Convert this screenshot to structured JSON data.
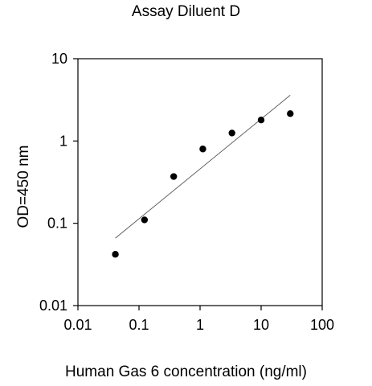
{
  "chart_data": {
    "type": "scatter",
    "title": "Assay Diluent D",
    "xlabel": "Human Gas 6 concentration (ng/ml)",
    "ylabel": "OD=450 nm",
    "xscale": "log",
    "yscale": "log",
    "xlim": [
      0.01,
      100
    ],
    "ylim": [
      0.01,
      10
    ],
    "x_ticks": [
      "0.01",
      "0.1",
      "1",
      "10",
      "100"
    ],
    "y_ticks": [
      "0.01",
      "0.1",
      "1",
      "10"
    ],
    "grid": false,
    "series": [
      {
        "x": [
          0.041,
          0.123,
          0.37,
          1.11,
          3.33,
          10,
          30
        ],
        "y": [
          0.042,
          0.11,
          0.37,
          0.8,
          1.25,
          1.8,
          2.15
        ]
      }
    ],
    "trendline": {
      "type": "linear fit",
      "x": [
        0.041,
        30
      ],
      "y": [
        0.066,
        3.6
      ]
    },
    "colors": {
      "points": "#000000",
      "axes": "#000000",
      "trendline": "#555555"
    }
  }
}
